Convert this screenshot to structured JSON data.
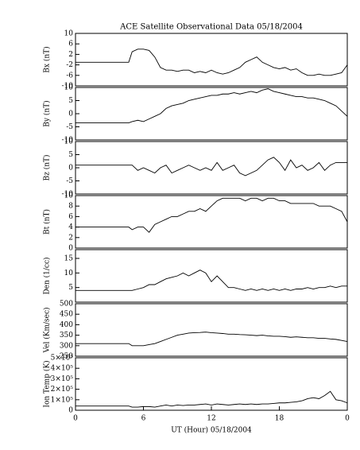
{
  "chart_data": [
    {
      "type": "line",
      "title": "ACE Satellite Observational Data   05/18/2004",
      "ylabel": "Bx (nT)",
      "color": "#000000",
      "x": [
        0,
        4.7,
        5,
        5.5,
        6,
        6.5,
        7,
        7.5,
        8,
        8.5,
        9,
        9.5,
        10,
        10.5,
        11,
        11.5,
        12,
        12.5,
        13,
        13.5,
        14,
        14.5,
        15,
        15.5,
        16,
        16.5,
        17,
        17.5,
        18,
        18.5,
        19,
        19.5,
        20,
        20.5,
        21,
        21.5,
        22,
        22.5,
        23,
        23.5,
        24
      ],
      "values": [
        -1,
        -1,
        3,
        4,
        4,
        3.5,
        1,
        -3,
        -4,
        -4,
        -4.5,
        -4,
        -4,
        -5,
        -4.5,
        -5,
        -4,
        -5,
        -5.5,
        -5,
        -4,
        -3,
        -1,
        0,
        1,
        -1,
        -2,
        -3,
        -3.5,
        -3,
        -4,
        -3.5,
        -5,
        -6,
        -6,
        -5.5,
        -6,
        -6,
        -5.5,
        -5,
        -2
      ],
      "xlim": [
        0,
        24
      ],
      "ylim": [
        -10,
        10
      ],
      "yticks": [
        10,
        6,
        2,
        -2,
        -6,
        -10
      ]
    },
    {
      "type": "line",
      "ylabel": "By (nT)",
      "color": "#000000",
      "x": [
        0,
        4.7,
        5,
        5.5,
        6,
        6.5,
        7,
        7.5,
        8,
        8.5,
        9,
        9.5,
        10,
        10.5,
        11,
        11.5,
        12,
        12.5,
        13,
        13.5,
        14,
        14.5,
        15,
        15.5,
        16,
        16.5,
        17,
        17.5,
        18,
        18.5,
        19,
        19.5,
        20,
        20.5,
        21,
        21.5,
        22,
        22.5,
        23,
        23.5,
        24
      ],
      "values": [
        -3.5,
        -3.5,
        -3,
        -2.5,
        -3,
        -2,
        -1,
        0,
        2,
        3,
        3.5,
        4,
        5,
        5.5,
        6,
        6.5,
        7,
        7,
        7.5,
        7.5,
        8,
        7.5,
        8,
        8.5,
        8,
        9,
        9.5,
        8.5,
        8,
        7.5,
        7,
        6.5,
        6.5,
        6,
        6,
        5.5,
        5,
        4,
        3,
        1,
        -1
      ],
      "xlim": [
        0,
        24
      ],
      "ylim": [
        -10,
        10
      ],
      "yticks": [
        10,
        5,
        0,
        -5,
        -10
      ]
    },
    {
      "type": "line",
      "ylabel": "Bz (nT)",
      "color": "#000000",
      "x": [
        0,
        4.7,
        5,
        5.5,
        6,
        6.5,
        7,
        7.5,
        8,
        8.5,
        9,
        9.5,
        10,
        10.5,
        11,
        11.5,
        12,
        12.5,
        13,
        13.5,
        14,
        14.5,
        15,
        15.5,
        16,
        16.5,
        17,
        17.5,
        18,
        18.5,
        19,
        19.5,
        20,
        20.5,
        21,
        21.5,
        22,
        22.5,
        23,
        23.5,
        24
      ],
      "values": [
        1,
        1,
        1,
        -1,
        0,
        -1,
        -2,
        0,
        1,
        -2,
        -1,
        0,
        1,
        0,
        -1,
        0,
        -1,
        2,
        -1,
        0,
        1,
        -2,
        -3,
        -2,
        -1,
        1,
        3,
        4,
        2,
        -1,
        3,
        0,
        1,
        -1,
        0,
        2,
        -1,
        1,
        2,
        2,
        2
      ],
      "xlim": [
        0,
        24
      ],
      "ylim": [
        -10,
        10
      ],
      "yticks": [
        10,
        5,
        0,
        -5,
        -10
      ]
    },
    {
      "type": "line",
      "ylabel": "Bt (nT)",
      "color": "#000000",
      "x": [
        0,
        4.7,
        5,
        5.5,
        6,
        6.5,
        7,
        7.5,
        8,
        8.5,
        9,
        9.5,
        10,
        10.5,
        11,
        11.5,
        12,
        12.5,
        13,
        13.5,
        14,
        14.5,
        15,
        15.5,
        16,
        16.5,
        17,
        17.5,
        18,
        18.5,
        19,
        19.5,
        20,
        20.5,
        21,
        21.5,
        22,
        22.5,
        23,
        23.5,
        24
      ],
      "values": [
        4,
        4,
        3.5,
        4,
        4,
        3,
        4.5,
        5,
        5.5,
        6,
        6,
        6.5,
        7,
        7,
        7.5,
        7,
        8,
        9,
        9.5,
        9.5,
        9.5,
        9.5,
        9,
        9.5,
        9.5,
        9,
        9.5,
        9.5,
        9,
        9,
        8.5,
        8.5,
        8.5,
        8.5,
        8.5,
        8,
        8,
        8,
        7.5,
        7,
        5
      ],
      "xlim": [
        0,
        24
      ],
      "ylim": [
        0,
        10
      ],
      "yticks": [
        10,
        8,
        6,
        4,
        2,
        0
      ]
    },
    {
      "type": "line",
      "ylabel": "Den (1/cc)",
      "color": "#000000",
      "x": [
        0,
        4.7,
        5,
        5.5,
        6,
        6.5,
        7,
        7.5,
        8,
        8.5,
        9,
        9.5,
        10,
        10.5,
        11,
        11.5,
        12,
        12.5,
        13,
        13.5,
        14,
        14.5,
        15,
        15.5,
        16,
        16.5,
        17,
        17.5,
        18,
        18.5,
        19,
        19.5,
        20,
        20.5,
        21,
        21.5,
        22,
        22.5,
        23,
        23.5,
        24
      ],
      "values": [
        4,
        4,
        4,
        4.5,
        5,
        6,
        6,
        7,
        8,
        8.5,
        9,
        10,
        9,
        10,
        11,
        10,
        7,
        9,
        7,
        5,
        5,
        4.5,
        4,
        4.5,
        4,
        4.5,
        4,
        4.5,
        4,
        4.5,
        4,
        4.5,
        4.5,
        5,
        4.5,
        5,
        5,
        5.5,
        5,
        5.5,
        5.5
      ],
      "xlim": [
        0,
        24
      ],
      "ylim": [
        0,
        18
      ],
      "yticks": [
        15,
        10,
        5
      ]
    },
    {
      "type": "line",
      "ylabel": "Vel (Km/sec)",
      "color": "#000000",
      "x": [
        0,
        4.7,
        5,
        5.5,
        6,
        6.5,
        7,
        7.5,
        8,
        8.5,
        9,
        9.5,
        10,
        10.5,
        11,
        11.5,
        12,
        12.5,
        13,
        13.5,
        14,
        14.5,
        15,
        15.5,
        16,
        16.5,
        17,
        17.5,
        18,
        18.5,
        19,
        19.5,
        20,
        20.5,
        21,
        21.5,
        22,
        22.5,
        23,
        23.5,
        24
      ],
      "values": [
        310,
        310,
        300,
        300,
        300,
        305,
        310,
        320,
        330,
        340,
        350,
        355,
        360,
        362,
        363,
        365,
        362,
        360,
        358,
        355,
        355,
        353,
        352,
        350,
        348,
        350,
        347,
        345,
        345,
        343,
        340,
        342,
        340,
        338,
        338,
        335,
        335,
        332,
        330,
        325,
        320
      ],
      "xlim": [
        0,
        24
      ],
      "ylim": [
        250,
        500
      ],
      "yticks": [
        500,
        450,
        400,
        350,
        300,
        250
      ]
    },
    {
      "type": "line",
      "ylabel": "Ion Temp (K)",
      "xlabel": "UT (Hour)   05/18/2004",
      "color": "#000000",
      "x": [
        0,
        4.7,
        5,
        5.5,
        6,
        6.5,
        7,
        7.5,
        8,
        8.5,
        9,
        9.5,
        10,
        10.5,
        11,
        11.5,
        12,
        12.5,
        13,
        13.5,
        14,
        14.5,
        15,
        15.5,
        16,
        16.5,
        17,
        17.5,
        18,
        18.5,
        19,
        19.5,
        20,
        20.5,
        21,
        21.5,
        22,
        22.5,
        23,
        23.5,
        24
      ],
      "values": [
        40000,
        40000,
        30000,
        30000,
        35000,
        35000,
        30000,
        40000,
        50000,
        40000,
        50000,
        45000,
        50000,
        50000,
        55000,
        60000,
        50000,
        60000,
        55000,
        50000,
        55000,
        60000,
        55000,
        60000,
        55000,
        60000,
        60000,
        65000,
        70000,
        70000,
        75000,
        80000,
        90000,
        110000,
        120000,
        110000,
        140000,
        180000,
        100000,
        90000,
        70000
      ],
      "xlim": [
        0,
        24
      ],
      "ylim": [
        0,
        500000
      ],
      "yticks": [
        {
          "value": 500000,
          "label": "5×10⁵"
        },
        {
          "value": 400000,
          "label": "4×10⁵"
        },
        {
          "value": 300000,
          "label": "3×10⁵"
        },
        {
          "value": 200000,
          "label": "2×10⁵"
        },
        {
          "value": 100000,
          "label": "1×10⁵"
        },
        0
      ],
      "xticks": [
        0,
        6,
        12,
        18,
        {
          "value": 24,
          "label": "0"
        }
      ]
    }
  ]
}
